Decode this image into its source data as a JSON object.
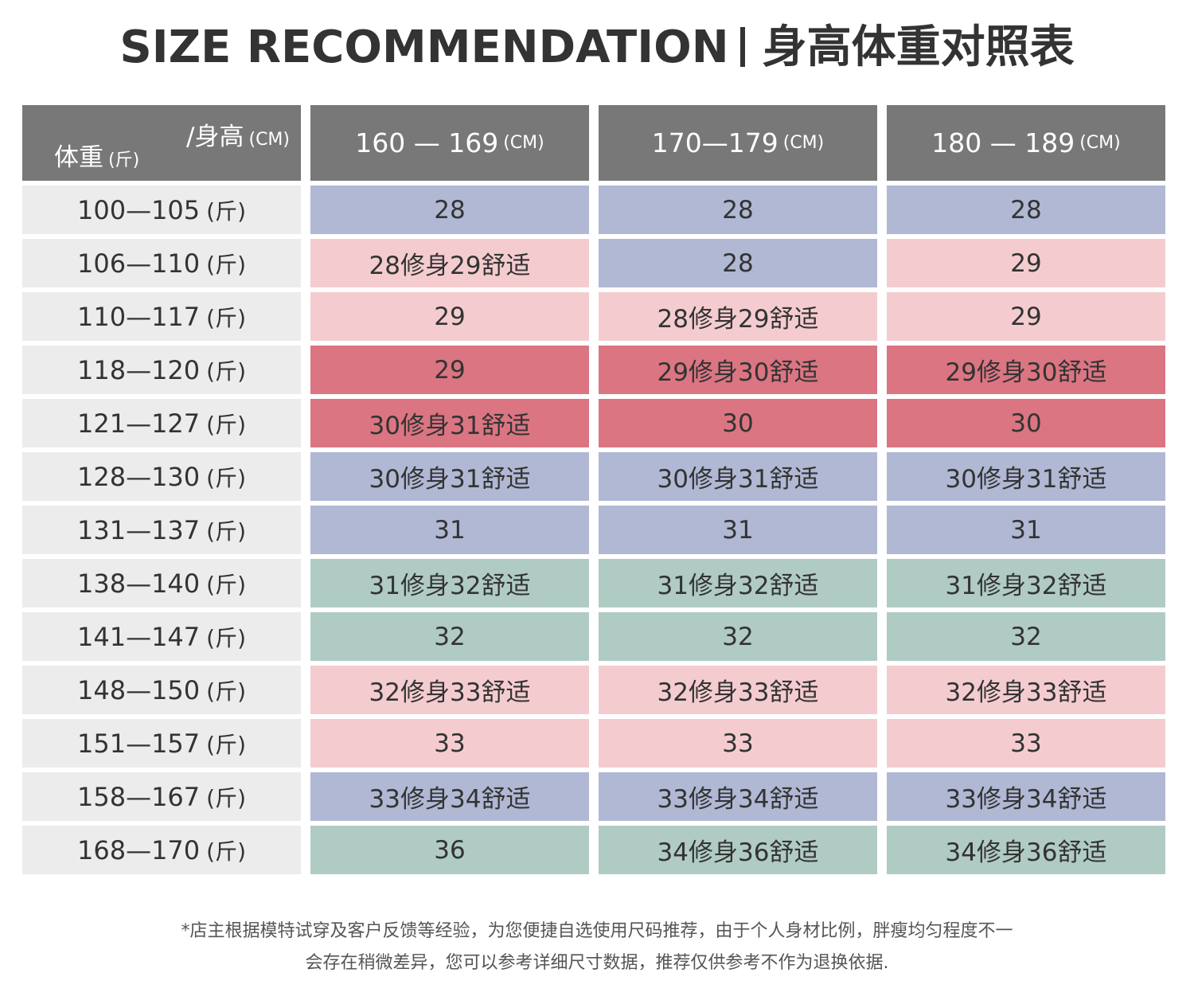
{
  "title": {
    "english": "SIZE RECOMMENDATION",
    "chinese": "身高体重对照表"
  },
  "corner": {
    "height_label": "/身高",
    "height_unit": "(CM)",
    "weight_label": "体重",
    "weight_unit": "(斤)"
  },
  "columns": [
    {
      "range": "160 — 169",
      "unit": "(CM)"
    },
    {
      "range": "170—179",
      "unit": "(CM)"
    },
    {
      "range": "180 — 189",
      "unit": "(CM)"
    }
  ],
  "colors": {
    "header_bg": "#787878",
    "label_bg": "#ececed",
    "blue": "#b0b8d4",
    "pink": "#f4ccd0",
    "red": "#db7582",
    "green": "#b0cbc4"
  },
  "rows": [
    {
      "range": "100—105",
      "unit": "(斤)",
      "cells": [
        {
          "text": "28",
          "color": "blue"
        },
        {
          "text": "28",
          "color": "blue"
        },
        {
          "text": "28",
          "color": "blue"
        }
      ]
    },
    {
      "range": "106—110",
      "unit": "(斤)",
      "cells": [
        {
          "text": "28修身29舒适",
          "color": "pink"
        },
        {
          "text": "28",
          "color": "blue"
        },
        {
          "text": "29",
          "color": "pink"
        }
      ]
    },
    {
      "range": "110—117",
      "unit": "(斤)",
      "cells": [
        {
          "text": "29",
          "color": "pink"
        },
        {
          "text": "28修身29舒适",
          "color": "pink"
        },
        {
          "text": "29",
          "color": "pink"
        }
      ]
    },
    {
      "range": "118—120",
      "unit": "(斤)",
      "cells": [
        {
          "text": "29",
          "color": "red"
        },
        {
          "text": "29修身30舒适",
          "color": "red"
        },
        {
          "text": "29修身30舒适",
          "color": "red"
        }
      ]
    },
    {
      "range": "121—127",
      "unit": "(斤)",
      "cells": [
        {
          "text": "30修身31舒适",
          "color": "red"
        },
        {
          "text": "30",
          "color": "red"
        },
        {
          "text": "30",
          "color": "red"
        }
      ]
    },
    {
      "range": "128—130",
      "unit": "(斤)",
      "cells": [
        {
          "text": "30修身31舒适",
          "color": "blue"
        },
        {
          "text": "30修身31舒适",
          "color": "blue"
        },
        {
          "text": "30修身31舒适",
          "color": "blue"
        }
      ]
    },
    {
      "range": "131—137",
      "unit": "(斤)",
      "cells": [
        {
          "text": "31",
          "color": "blue"
        },
        {
          "text": "31",
          "color": "blue"
        },
        {
          "text": "31",
          "color": "blue"
        }
      ]
    },
    {
      "range": "138—140",
      "unit": "(斤)",
      "cells": [
        {
          "text": "31修身32舒适",
          "color": "green"
        },
        {
          "text": "31修身32舒适",
          "color": "green"
        },
        {
          "text": "31修身32舒适",
          "color": "green"
        }
      ]
    },
    {
      "range": "141—147",
      "unit": "(斤)",
      "cells": [
        {
          "text": "32",
          "color": "green"
        },
        {
          "text": "32",
          "color": "green"
        },
        {
          "text": "32",
          "color": "green"
        }
      ]
    },
    {
      "range": "148—150",
      "unit": "(斤)",
      "cells": [
        {
          "text": "32修身33舒适",
          "color": "pink"
        },
        {
          "text": "32修身33舒适",
          "color": "pink"
        },
        {
          "text": "32修身33舒适",
          "color": "pink"
        }
      ]
    },
    {
      "range": "151—157",
      "unit": "(斤)",
      "cells": [
        {
          "text": "33",
          "color": "pink"
        },
        {
          "text": "33",
          "color": "pink"
        },
        {
          "text": "33",
          "color": "pink"
        }
      ]
    },
    {
      "range": "158—167",
      "unit": "(斤)",
      "cells": [
        {
          "text": "33修身34舒适",
          "color": "blue"
        },
        {
          "text": "33修身34舒适",
          "color": "blue"
        },
        {
          "text": "33修身34舒适",
          "color": "blue"
        }
      ]
    },
    {
      "range": "168—170",
      "unit": "(斤)",
      "cells": [
        {
          "text": "36",
          "color": "green"
        },
        {
          "text": "34修身36舒适",
          "color": "green"
        },
        {
          "text": "34修身36舒适",
          "color": "green"
        }
      ]
    }
  ],
  "footnote": {
    "line1": "*店主根据模特试穿及客户反馈等经验，为您便捷自选使用尺码推荐，由于个人身材比例，胖瘦均匀程度不一",
    "line2": "会存在稍微差异，您可以参考详细尺寸数据，推荐仅供参考不作为退换依据."
  }
}
